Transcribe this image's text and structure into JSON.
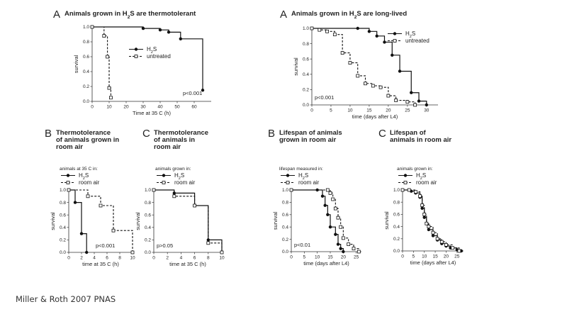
{
  "citation": "Miller & Roth 2007 PNAS",
  "chart_data": [
    {
      "id": "p1",
      "type": "line",
      "letter": "A",
      "title_lines": [
        [
          "Animals grown in H",
          "2",
          "S are thermotolerant"
        ]
      ],
      "xlabel": "Time at 35 C (h)",
      "ylabel": "survival",
      "xlim": [
        0,
        70
      ],
      "ylim": [
        0,
        1.0
      ],
      "xticks": [
        0,
        10,
        20,
        30,
        40,
        50,
        60
      ],
      "yticks": [
        0.0,
        0.2,
        0.4,
        0.6,
        0.8,
        1.0
      ],
      "legend_position": "center-right",
      "legend_header": "",
      "pvalue": "p<0.001",
      "series": [
        {
          "name": "H2S",
          "name_parts": [
            "H",
            "2",
            "S"
          ],
          "style": "solid",
          "marker": "filled-circle",
          "points": [
            [
              0,
              1.0
            ],
            [
              30,
              0.98
            ],
            [
              40,
              0.96
            ],
            [
              45,
              0.93
            ],
            [
              52,
              0.84
            ],
            [
              65,
              0.15
            ]
          ]
        },
        {
          "name": "untreated",
          "name_parts": [
            "untreated"
          ],
          "style": "dashed",
          "marker": "open-square",
          "points": [
            [
              0,
              1.0
            ],
            [
              7,
              0.88
            ],
            [
              9,
              0.6
            ],
            [
              10,
              0.18
            ],
            [
              11,
              0.05
            ]
          ]
        }
      ]
    },
    {
      "id": "p2",
      "type": "line",
      "letter": "A",
      "title_lines": [
        [
          "Animals grown in H",
          "2",
          "S are long-lived"
        ]
      ],
      "xlabel": "time (days after L4)",
      "ylabel": "survival",
      "xlim": [
        0,
        33
      ],
      "ylim": [
        0,
        1.0
      ],
      "xticks": [
        0,
        5,
        10,
        15,
        20,
        25,
        30
      ],
      "yticks": [
        0.0,
        0.2,
        0.4,
        0.6,
        0.8,
        1.0
      ],
      "legend_position": "top-right",
      "legend_header": "",
      "pvalue": "p<0.001",
      "series": [
        {
          "name": "H2S",
          "name_parts": [
            "H",
            "2",
            "S"
          ],
          "style": "solid",
          "marker": "filled-circle",
          "points": [
            [
              0,
              1.0
            ],
            [
              12,
              1.0
            ],
            [
              15,
              0.96
            ],
            [
              17,
              0.9
            ],
            [
              19,
              0.82
            ],
            [
              21,
              0.65
            ],
            [
              23,
              0.44
            ],
            [
              26,
              0.16
            ],
            [
              28,
              0.05
            ],
            [
              30,
              0.0
            ]
          ]
        },
        {
          "name": "untreated",
          "name_parts": [
            "untreated"
          ],
          "style": "dashed",
          "marker": "open-square",
          "points": [
            [
              0,
              1.0
            ],
            [
              2,
              0.98
            ],
            [
              4,
              0.96
            ],
            [
              6,
              0.92
            ],
            [
              8,
              0.68
            ],
            [
              10,
              0.55
            ],
            [
              12,
              0.38
            ],
            [
              14,
              0.28
            ],
            [
              16,
              0.25
            ],
            [
              18,
              0.23
            ],
            [
              20,
              0.12
            ],
            [
              22,
              0.06
            ],
            [
              25,
              0.04
            ],
            [
              27,
              0.0
            ]
          ]
        }
      ]
    },
    {
      "id": "p3",
      "type": "line",
      "letter": "B",
      "title_lines": [
        [
          "Thermotolerance"
        ],
        [
          "of animals grown in"
        ],
        [
          "room air"
        ]
      ],
      "xlabel": "time at 35 C (h)",
      "ylabel": "survival",
      "xlim": [
        0,
        10
      ],
      "ylim": [
        0,
        1.0
      ],
      "xticks": [
        0,
        2,
        4,
        6,
        8,
        10
      ],
      "yticks": [
        0.0,
        0.2,
        0.4,
        0.6,
        0.8,
        1.0
      ],
      "legend_position": "top-left",
      "legend_header": "animals at 35 C in:",
      "pvalue": "p<0.001",
      "series": [
        {
          "name": "H2S",
          "name_parts": [
            "H",
            "2",
            "S"
          ],
          "style": "solid",
          "marker": "filled-circle",
          "points": [
            [
              0,
              1.0
            ],
            [
              1,
              0.8
            ],
            [
              2,
              0.3
            ],
            [
              2.8,
              0.0
            ]
          ]
        },
        {
          "name": "room air",
          "name_parts": [
            "room air"
          ],
          "style": "dashed",
          "marker": "open-square",
          "points": [
            [
              0,
              1.0
            ],
            [
              3,
              0.9
            ],
            [
              5,
              0.75
            ],
            [
              7,
              0.35
            ],
            [
              10,
              0.0
            ]
          ]
        }
      ]
    },
    {
      "id": "p4",
      "type": "line",
      "letter": "C",
      "title_lines": [
        [
          "Thermotolerance"
        ],
        [
          "of animals in"
        ],
        [
          "room air"
        ]
      ],
      "xlabel": "time at 35 C (h)",
      "ylabel": "survival",
      "xlim": [
        0,
        10
      ],
      "ylim": [
        0,
        1.0
      ],
      "xticks": [
        0,
        2,
        4,
        6,
        8,
        10
      ],
      "yticks": [
        0.0,
        0.2,
        0.4,
        0.6,
        0.8,
        1.0
      ],
      "legend_position": "top-left",
      "legend_header": "animals grown in:",
      "pvalue": "p>0.05",
      "series": [
        {
          "name": "H2S",
          "name_parts": [
            "H",
            "2",
            "S"
          ],
          "style": "solid",
          "marker": "filled-circle",
          "points": [
            [
              0,
              1.0
            ],
            [
              3,
              0.95
            ],
            [
              6,
              0.75
            ],
            [
              8,
              0.2
            ],
            [
              10,
              0.0
            ]
          ]
        },
        {
          "name": "room air",
          "name_parts": [
            "room air"
          ],
          "style": "dashed",
          "marker": "open-square",
          "points": [
            [
              0,
              1.0
            ],
            [
              3,
              0.9
            ],
            [
              6,
              0.75
            ],
            [
              8,
              0.15
            ],
            [
              10,
              0.0
            ]
          ]
        }
      ]
    },
    {
      "id": "p5",
      "type": "line",
      "letter": "B",
      "title_lines": [
        [
          "Lifespan of animals"
        ],
        [
          "grown in room air"
        ]
      ],
      "xlabel": "time (days after L4)",
      "ylabel": "survival",
      "xlim": [
        0,
        27
      ],
      "ylim": [
        0,
        1.0
      ],
      "xticks": [
        0,
        5,
        10,
        15,
        20,
        25
      ],
      "yticks": [
        0.0,
        0.2,
        0.4,
        0.6,
        0.8,
        1.0
      ],
      "legend_position": "top-left",
      "legend_header": "lifespan measured in:",
      "pvalue": "p<0.01",
      "series": [
        {
          "name": "H2S",
          "name_parts": [
            "H",
            "2",
            "S"
          ],
          "style": "solid",
          "marker": "filled-circle",
          "points": [
            [
              0,
              1.0
            ],
            [
              10,
              1.0
            ],
            [
              12,
              0.9
            ],
            [
              13,
              0.75
            ],
            [
              14,
              0.6
            ],
            [
              15,
              0.4
            ],
            [
              17,
              0.28
            ],
            [
              18,
              0.12
            ],
            [
              19,
              0.05
            ],
            [
              20,
              0.0
            ]
          ]
        },
        {
          "name": "room air",
          "name_parts": [
            "room air"
          ],
          "style": "dashed",
          "marker": "open-square",
          "points": [
            [
              0,
              1.0
            ],
            [
              14,
              1.0
            ],
            [
              15,
              0.95
            ],
            [
              16,
              0.85
            ],
            [
              17,
              0.7
            ],
            [
              18,
              0.55
            ],
            [
              19,
              0.4
            ],
            [
              20,
              0.22
            ],
            [
              22,
              0.12
            ],
            [
              24,
              0.05
            ],
            [
              26,
              0.0
            ]
          ]
        }
      ]
    },
    {
      "id": "p6",
      "type": "line",
      "letter": "C",
      "title_lines": [
        [
          "Lifespan of"
        ],
        [
          "animals in room air"
        ]
      ],
      "xlabel": "time (days after L4)",
      "ylabel": "survival",
      "xlim": [
        0,
        28
      ],
      "ylim": [
        0,
        1.0
      ],
      "xticks": [
        0,
        5,
        10,
        15,
        20,
        25
      ],
      "yticks": [
        0.0,
        0.2,
        0.4,
        0.6,
        0.8,
        1.0
      ],
      "legend_position": "top-right",
      "legend_header": "animals grown in:",
      "pvalue": "",
      "series": [
        {
          "name": "H2S",
          "name_parts": [
            "H",
            "2",
            "S"
          ],
          "style": "solid",
          "marker": "filled-circle",
          "points": [
            [
              0,
              1.0
            ],
            [
              4,
              0.98
            ],
            [
              6,
              0.95
            ],
            [
              8,
              0.88
            ],
            [
              9,
              0.7
            ],
            [
              10,
              0.55
            ],
            [
              11,
              0.45
            ],
            [
              12,
              0.35
            ],
            [
              14,
              0.25
            ],
            [
              16,
              0.18
            ],
            [
              18,
              0.12
            ],
            [
              20,
              0.08
            ],
            [
              22,
              0.05
            ],
            [
              25,
              0.02
            ],
            [
              27,
              0.0
            ]
          ]
        },
        {
          "name": "room air",
          "name_parts": [
            "room air"
          ],
          "style": "dashed",
          "marker": "open-square",
          "points": [
            [
              0,
              1.0
            ],
            [
              3,
              1.0
            ],
            [
              6,
              0.97
            ],
            [
              8,
              0.9
            ],
            [
              9,
              0.75
            ],
            [
              10,
              0.6
            ],
            [
              11,
              0.45
            ],
            [
              12,
              0.4
            ],
            [
              14,
              0.3
            ],
            [
              16,
              0.2
            ],
            [
              18,
              0.15
            ],
            [
              20,
              0.1
            ],
            [
              23,
              0.05
            ],
            [
              26,
              0.0
            ]
          ]
        }
      ]
    }
  ]
}
